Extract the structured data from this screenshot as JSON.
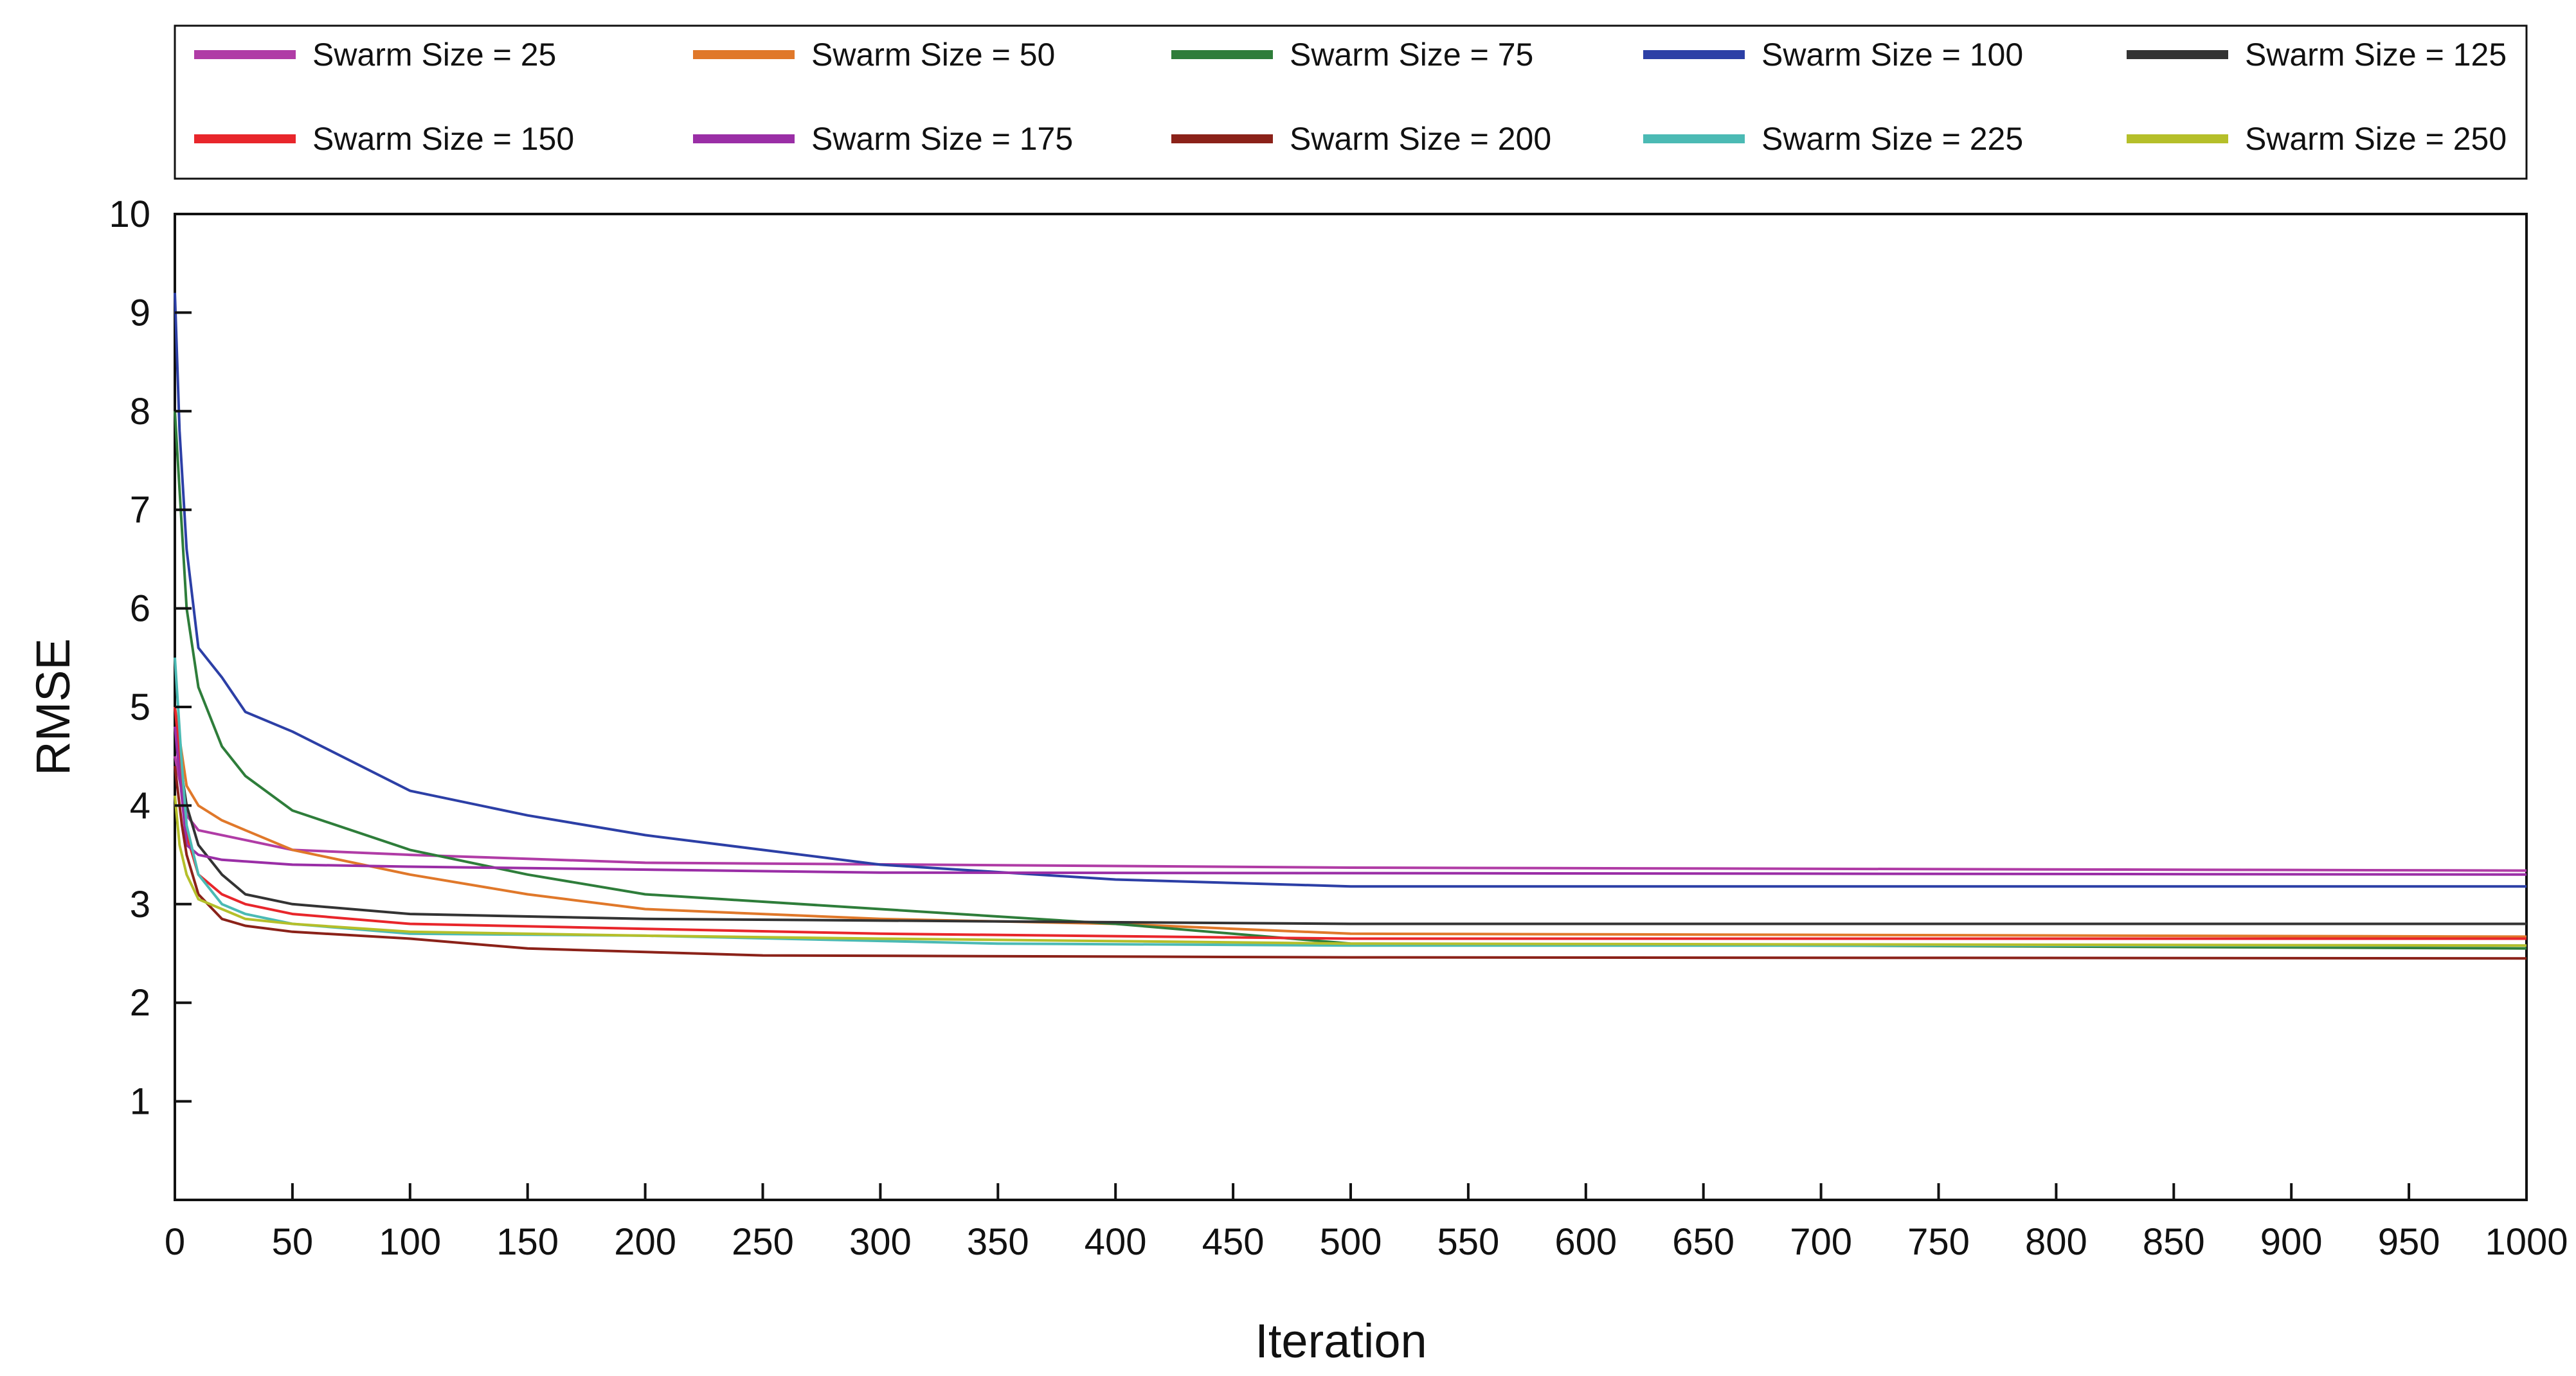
{
  "chart_data": {
    "type": "line",
    "title": "",
    "xlabel": "Iteration",
    "ylabel": "RMSE",
    "xlim": [
      0,
      1000
    ],
    "ylim": [
      0,
      10
    ],
    "x_ticks": [
      0,
      50,
      100,
      150,
      200,
      250,
      300,
      350,
      400,
      450,
      500,
      550,
      600,
      650,
      700,
      750,
      800,
      850,
      900,
      950,
      1000
    ],
    "y_ticks": [
      1,
      2,
      3,
      4,
      5,
      6,
      7,
      8,
      9,
      10
    ],
    "grid": false,
    "legend_position": "top",
    "series": [
      {
        "name": "Swarm Size = 25",
        "color": "#b03ca6",
        "x": [
          0,
          5,
          10,
          20,
          30,
          50,
          100,
          200,
          500,
          1000
        ],
        "y": [
          4.5,
          3.9,
          3.75,
          3.7,
          3.65,
          3.55,
          3.5,
          3.42,
          3.37,
          3.34
        ]
      },
      {
        "name": "Swarm Size = 50",
        "color": "#e0782a",
        "x": [
          0,
          5,
          10,
          20,
          30,
          50,
          100,
          150,
          200,
          300,
          400,
          500,
          1000
        ],
        "y": [
          5.0,
          4.2,
          4.0,
          3.85,
          3.75,
          3.55,
          3.3,
          3.1,
          2.95,
          2.85,
          2.8,
          2.7,
          2.67
        ]
      },
      {
        "name": "Swarm Size = 75",
        "color": "#2e7d3a",
        "x": [
          0,
          3,
          5,
          10,
          20,
          30,
          50,
          100,
          150,
          200,
          300,
          400,
          500,
          1000
        ],
        "y": [
          8.0,
          6.8,
          6.0,
          5.2,
          4.6,
          4.3,
          3.95,
          3.55,
          3.3,
          3.1,
          2.95,
          2.8,
          2.6,
          2.55
        ]
      },
      {
        "name": "Swarm Size = 100",
        "color": "#2c3fa6",
        "x": [
          0,
          2,
          5,
          10,
          20,
          30,
          50,
          100,
          150,
          200,
          300,
          400,
          500,
          1000
        ],
        "y": [
          9.2,
          7.8,
          6.6,
          5.6,
          5.3,
          4.95,
          4.75,
          4.15,
          3.9,
          3.7,
          3.4,
          3.25,
          3.18,
          3.18
        ]
      },
      {
        "name": "Swarm Size = 125",
        "color": "#333333",
        "x": [
          0,
          5,
          10,
          20,
          30,
          50,
          100,
          200,
          500,
          1000
        ],
        "y": [
          4.8,
          4.0,
          3.6,
          3.3,
          3.1,
          3.0,
          2.9,
          2.85,
          2.8,
          2.8
        ]
      },
      {
        "name": "Swarm Size = 150",
        "color": "#e8262b",
        "x": [
          0,
          3,
          5,
          10,
          20,
          30,
          50,
          100,
          200,
          300,
          500,
          1000
        ],
        "y": [
          5.0,
          4.3,
          3.7,
          3.3,
          3.1,
          3.0,
          2.9,
          2.8,
          2.75,
          2.7,
          2.65,
          2.65
        ]
      },
      {
        "name": "Swarm Size = 175",
        "color": "#9a2ea6",
        "x": [
          0,
          5,
          10,
          20,
          50,
          100,
          300,
          1000
        ],
        "y": [
          4.8,
          3.6,
          3.5,
          3.45,
          3.4,
          3.38,
          3.32,
          3.3
        ]
      },
      {
        "name": "Swarm Size = 200",
        "color": "#8b2219",
        "x": [
          0,
          3,
          5,
          10,
          20,
          30,
          50,
          100,
          150,
          250,
          500,
          1000
        ],
        "y": [
          4.4,
          3.8,
          3.5,
          3.1,
          2.85,
          2.78,
          2.72,
          2.65,
          2.55,
          2.48,
          2.46,
          2.45
        ]
      },
      {
        "name": "Swarm Size = 225",
        "color": "#4bbab4",
        "x": [
          0,
          3,
          5,
          10,
          20,
          30,
          50,
          100,
          200,
          350,
          500,
          1000
        ],
        "y": [
          5.5,
          4.4,
          3.8,
          3.3,
          3.0,
          2.9,
          2.8,
          2.7,
          2.68,
          2.6,
          2.58,
          2.58
        ]
      },
      {
        "name": "Swarm Size = 250",
        "color": "#b5bf2a",
        "x": [
          0,
          2,
          5,
          10,
          20,
          30,
          50,
          100,
          200,
          300,
          500,
          1000
        ],
        "y": [
          4.1,
          3.6,
          3.3,
          3.05,
          2.95,
          2.85,
          2.8,
          2.72,
          2.68,
          2.65,
          2.6,
          2.58
        ]
      }
    ]
  }
}
